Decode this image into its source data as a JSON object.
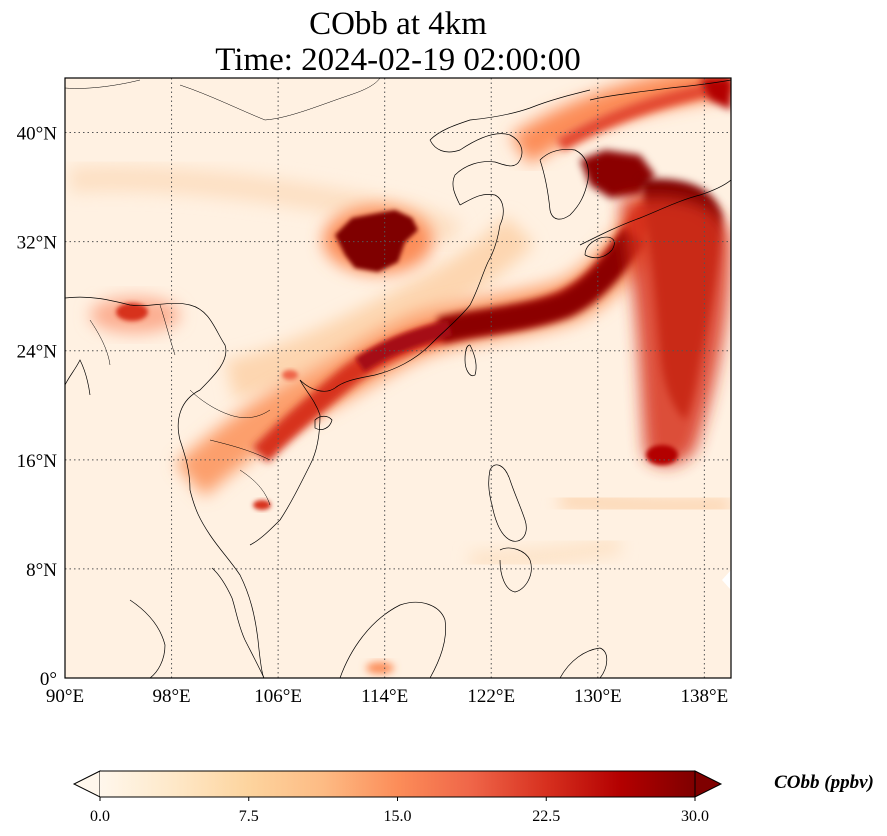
{
  "title": {
    "line1": "CObb at 4km",
    "line2": "Time: 2024-02-19 02:00:00"
  },
  "map": {
    "lon_range": [
      90,
      140
    ],
    "lat_range": [
      0,
      44
    ],
    "lon_ticks": [
      {
        "value": 90,
        "label": "90°E"
      },
      {
        "value": 98,
        "label": "98°E"
      },
      {
        "value": 106,
        "label": "106°E"
      },
      {
        "value": 114,
        "label": "114°E"
      },
      {
        "value": 122,
        "label": "122°E"
      },
      {
        "value": 130,
        "label": "130°E"
      },
      {
        "value": 138,
        "label": "138°E"
      }
    ],
    "lat_ticks": [
      {
        "value": 0,
        "label": "0°"
      },
      {
        "value": 8,
        "label": "8°N"
      },
      {
        "value": 16,
        "label": "16°N"
      },
      {
        "value": 24,
        "label": "24°N"
      },
      {
        "value": 32,
        "label": "32°N"
      },
      {
        "value": 40,
        "label": "40°N"
      }
    ],
    "gridlines": "dotted",
    "background_color": "#fff1e2"
  },
  "colorbar": {
    "label": "CObb (ppbv)",
    "min": 0,
    "max": 30,
    "ticks": [
      {
        "value": 0,
        "label": "0.0"
      },
      {
        "value": 7.5,
        "label": "7.5"
      },
      {
        "value": 15,
        "label": "15.0"
      },
      {
        "value": 22.5,
        "label": "22.5"
      },
      {
        "value": 30,
        "label": "30.0"
      }
    ],
    "colormap": "OrRd",
    "extend": "both",
    "colors": [
      "#fff7ec",
      "#fee8c8",
      "#fdd49e",
      "#fdbb84",
      "#fc8d59",
      "#ef6548",
      "#d7301f",
      "#b30000",
      "#7f0000"
    ]
  }
}
